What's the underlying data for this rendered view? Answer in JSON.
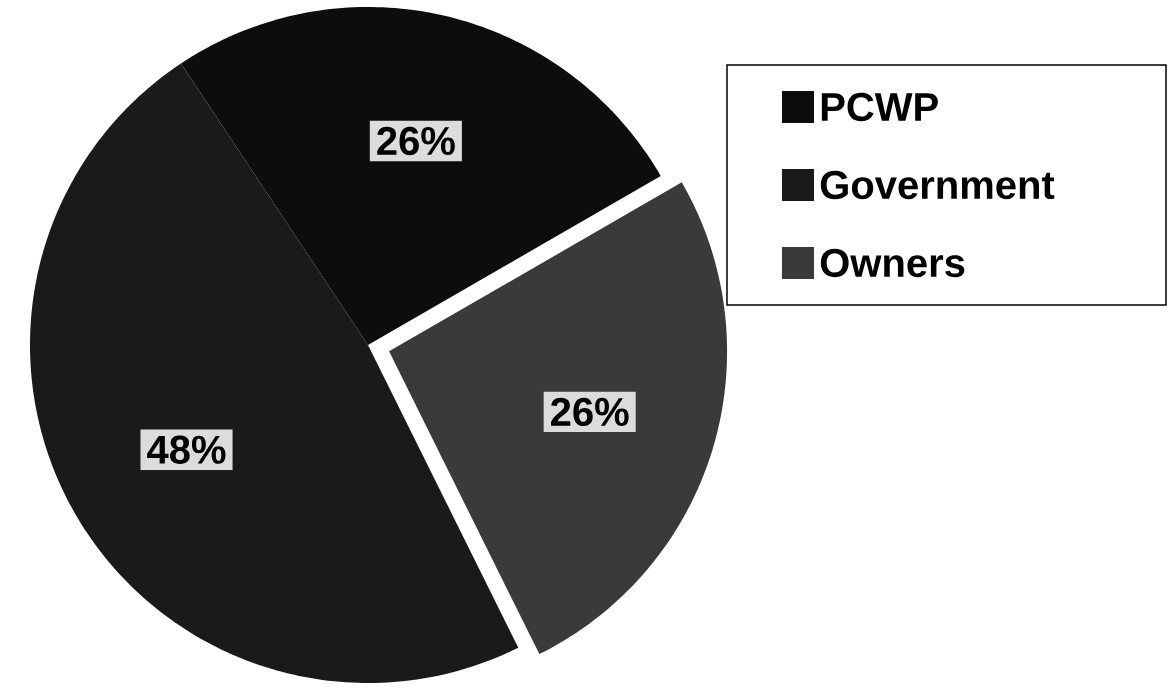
{
  "chart_data": {
    "type": "pie",
    "categories": [
      "PCWP",
      "Government",
      "Owners"
    ],
    "values": [
      26,
      48,
      26
    ],
    "colors": [
      "#0d0d0d",
      "#1a1a1a",
      "#3a3a3a"
    ],
    "value_labels": [
      "26%",
      "48%",
      "26%"
    ],
    "legend": "top right"
  }
}
